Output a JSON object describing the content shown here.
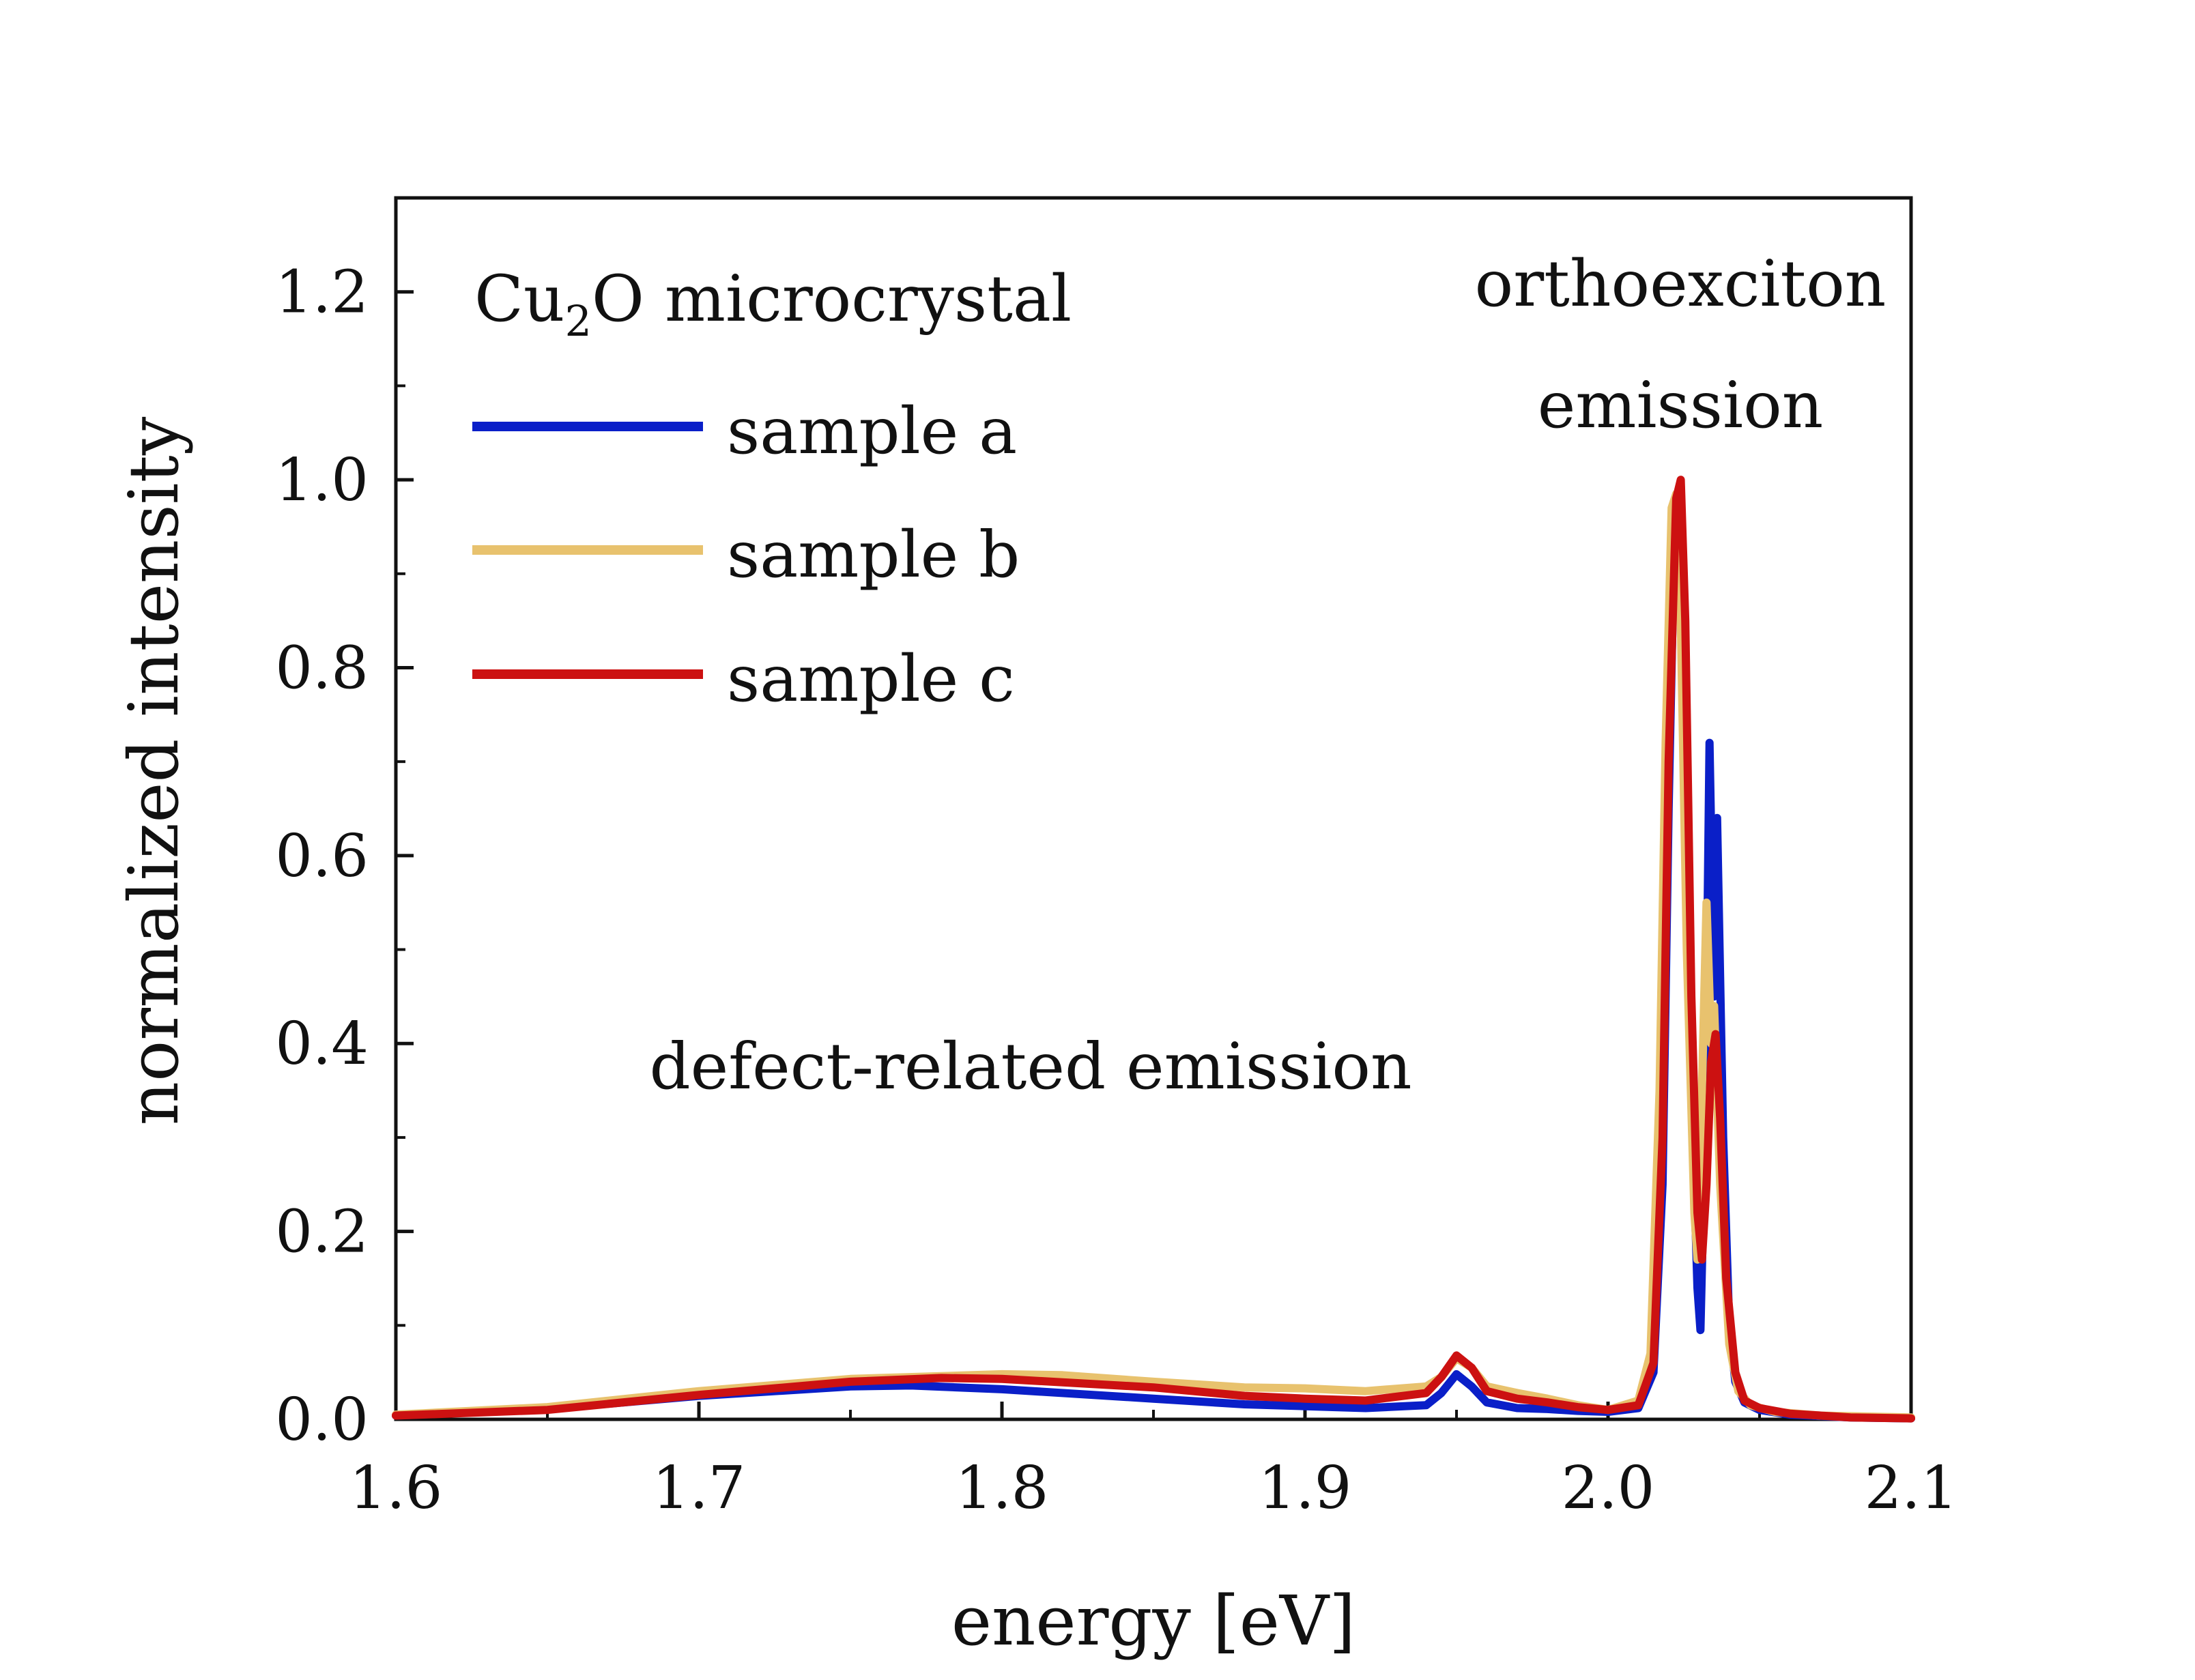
{
  "chart_data": {
    "type": "line",
    "title": "",
    "xlabel": "energy [eV]",
    "ylabel": "normalized intensity",
    "xlim": [
      1.6,
      2.1
    ],
    "ylim": [
      0.0,
      1.3
    ],
    "grid": false,
    "x_ticks": [
      "1.6",
      "1.7",
      "1.8",
      "1.9",
      "2.0",
      "2.1"
    ],
    "x_tick_values": [
      1.6,
      1.7,
      1.8,
      1.9,
      2.0,
      2.1
    ],
    "y_ticks": [
      "0.0",
      "0.2",
      "0.4",
      "0.6",
      "0.8",
      "1.0",
      "1.2"
    ],
    "y_tick_values": [
      0.0,
      0.2,
      0.4,
      0.6,
      0.8,
      1.0,
      1.2
    ],
    "legend": {
      "title_main": "Cu",
      "title_sub": "2",
      "title_rest": "O microcrystal",
      "placement": "top-left",
      "entries": [
        "sample a",
        "sample b",
        "sample c"
      ]
    },
    "annotations": {
      "ortho_line1": "orthoexciton",
      "ortho_line2": "emission",
      "defect": "defect-related emission"
    },
    "series": [
      {
        "name": "sample a",
        "color": "#0a1fc8",
        "points": [
          [
            1.6,
            0.004
          ],
          [
            1.65,
            0.011
          ],
          [
            1.7,
            0.025
          ],
          [
            1.75,
            0.035
          ],
          [
            1.77,
            0.036
          ],
          [
            1.8,
            0.032
          ],
          [
            1.85,
            0.022
          ],
          [
            1.88,
            0.016
          ],
          [
            1.9,
            0.014
          ],
          [
            1.92,
            0.012
          ],
          [
            1.94,
            0.015
          ],
          [
            1.945,
            0.028
          ],
          [
            1.95,
            0.048
          ],
          [
            1.955,
            0.035
          ],
          [
            1.96,
            0.018
          ],
          [
            1.97,
            0.012
          ],
          [
            1.98,
            0.011
          ],
          [
            1.99,
            0.009
          ],
          [
            2.0,
            0.008
          ],
          [
            2.01,
            0.012
          ],
          [
            2.015,
            0.05
          ],
          [
            2.018,
            0.25
          ],
          [
            2.02,
            0.65
          ],
          [
            2.022,
            0.96
          ],
          [
            2.0235,
            0.99
          ],
          [
            2.025,
            0.8
          ],
          [
            2.027,
            0.4
          ],
          [
            2.0295,
            0.14
          ],
          [
            2.0305,
            0.095
          ],
          [
            2.032,
            0.3
          ],
          [
            2.0335,
            0.72
          ],
          [
            2.035,
            0.45
          ],
          [
            2.036,
            0.64
          ],
          [
            2.038,
            0.3
          ],
          [
            2.04,
            0.1
          ],
          [
            2.042,
            0.04
          ],
          [
            2.045,
            0.018
          ],
          [
            2.05,
            0.01
          ],
          [
            2.06,
            0.005
          ],
          [
            2.08,
            0.002
          ],
          [
            2.1,
            0.001
          ]
        ]
      },
      {
        "name": "sample b",
        "color": "#e8c26e",
        "points": [
          [
            1.6,
            0.005
          ],
          [
            1.65,
            0.013
          ],
          [
            1.7,
            0.03
          ],
          [
            1.75,
            0.043
          ],
          [
            1.8,
            0.048
          ],
          [
            1.82,
            0.047
          ],
          [
            1.85,
            0.04
          ],
          [
            1.88,
            0.034
          ],
          [
            1.9,
            0.033
          ],
          [
            1.92,
            0.03
          ],
          [
            1.94,
            0.035
          ],
          [
            1.945,
            0.045
          ],
          [
            1.95,
            0.065
          ],
          [
            1.955,
            0.055
          ],
          [
            1.96,
            0.035
          ],
          [
            1.97,
            0.028
          ],
          [
            1.98,
            0.022
          ],
          [
            1.99,
            0.015
          ],
          [
            2.0,
            0.01
          ],
          [
            2.01,
            0.02
          ],
          [
            2.014,
            0.07
          ],
          [
            2.017,
            0.35
          ],
          [
            2.019,
            0.72
          ],
          [
            2.021,
            0.97
          ],
          [
            2.0225,
            0.985
          ],
          [
            2.024,
            0.85
          ],
          [
            2.026,
            0.5
          ],
          [
            2.0285,
            0.22
          ],
          [
            2.0295,
            0.17
          ],
          [
            2.031,
            0.35
          ],
          [
            2.0325,
            0.55
          ],
          [
            2.034,
            0.4
          ],
          [
            2.035,
            0.44
          ],
          [
            2.037,
            0.25
          ],
          [
            2.04,
            0.08
          ],
          [
            2.043,
            0.03
          ],
          [
            2.047,
            0.015
          ],
          [
            2.055,
            0.008
          ],
          [
            2.07,
            0.004
          ],
          [
            2.1,
            0.002
          ]
        ]
      },
      {
        "name": "sample c",
        "color": "#cc1111",
        "points": [
          [
            1.6,
            0.004
          ],
          [
            1.65,
            0.01
          ],
          [
            1.7,
            0.026
          ],
          [
            1.75,
            0.04
          ],
          [
            1.78,
            0.044
          ],
          [
            1.8,
            0.043
          ],
          [
            1.85,
            0.034
          ],
          [
            1.88,
            0.025
          ],
          [
            1.9,
            0.022
          ],
          [
            1.92,
            0.02
          ],
          [
            1.94,
            0.028
          ],
          [
            1.945,
            0.045
          ],
          [
            1.95,
            0.068
          ],
          [
            1.955,
            0.055
          ],
          [
            1.96,
            0.03
          ],
          [
            1.97,
            0.022
          ],
          [
            1.98,
            0.018
          ],
          [
            1.99,
            0.013
          ],
          [
            2.0,
            0.01
          ],
          [
            2.01,
            0.015
          ],
          [
            2.015,
            0.06
          ],
          [
            2.018,
            0.3
          ],
          [
            2.02,
            0.7
          ],
          [
            2.0225,
            0.98
          ],
          [
            2.024,
            1.0
          ],
          [
            2.0255,
            0.85
          ],
          [
            2.0275,
            0.45
          ],
          [
            2.0295,
            0.22
          ],
          [
            2.031,
            0.17
          ],
          [
            2.0325,
            0.25
          ],
          [
            2.034,
            0.38
          ],
          [
            2.0355,
            0.41
          ],
          [
            2.037,
            0.32
          ],
          [
            2.039,
            0.15
          ],
          [
            2.042,
            0.05
          ],
          [
            2.045,
            0.02
          ],
          [
            2.05,
            0.012
          ],
          [
            2.06,
            0.006
          ],
          [
            2.08,
            0.002
          ],
          [
            2.1,
            0.001
          ]
        ]
      }
    ]
  }
}
